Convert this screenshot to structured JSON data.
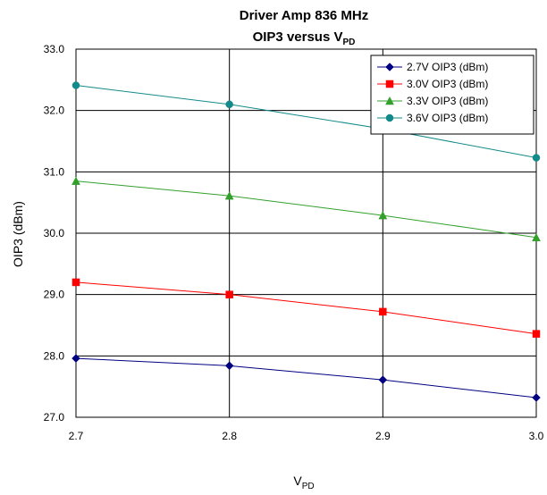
{
  "chart_data": {
    "type": "line",
    "title_line1": "Driver Amp 836 MHz",
    "title_line2": {
      "main": "OIP3 versus V",
      "sub": "PD"
    },
    "xlabel": {
      "main": "V",
      "sub": "PD"
    },
    "ylabel": "OIP3 (dBm)",
    "x": [
      2.7,
      2.8,
      2.9,
      3.0
    ],
    "x_tick_labels": [
      "2.7",
      "2.8",
      "2.9",
      "3.0"
    ],
    "y_tick_labels": [
      "27.0",
      "28.0",
      "29.0",
      "30.0",
      "31.0",
      "32.0",
      "33.0"
    ],
    "xlim": [
      2.7,
      3.0
    ],
    "ylim": [
      27.0,
      33.0
    ],
    "grid": true,
    "legend_position": "top-right",
    "series": [
      {
        "name": "2.7V OIP3 (dBm)",
        "color": "#000080",
        "marker": "diamond",
        "values": [
          27.96,
          27.84,
          27.61,
          27.32
        ]
      },
      {
        "name": "3.0V OIP3 (dBm)",
        "color": "#ff0000",
        "marker": "square",
        "values": [
          29.2,
          29.0,
          28.72,
          28.36
        ]
      },
      {
        "name": "3.3V OIP3 (dBm)",
        "color": "#33a02c",
        "marker": "triangle",
        "values": [
          30.85,
          30.61,
          30.29,
          29.93
        ]
      },
      {
        "name": "3.6V OIP3 (dBm)",
        "color": "#138a8a",
        "marker": "circle",
        "values": [
          32.41,
          32.1,
          31.7,
          31.23
        ]
      }
    ]
  }
}
